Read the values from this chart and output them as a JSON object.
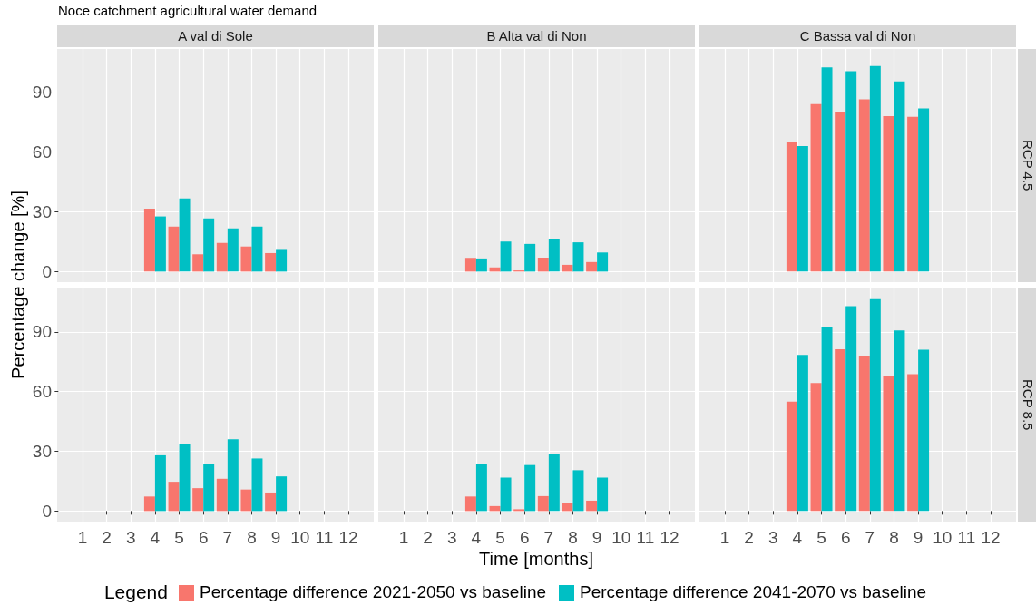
{
  "chart_data": [
    {
      "type": "bar",
      "title": "Noce catchment agricultural water demand",
      "subtitle": "A val di Sole",
      "ylabel": "Percentage change [%]",
      "legend_title": "Legend",
      "legend": "bottom",
      "grid": true,
      "tick_labels": "y",
      "x": [
        1,
        2,
        3,
        4,
        5,
        6,
        7,
        8,
        9,
        10,
        11,
        12
      ],
      "xlim": [
        -0.05,
        13.05
      ],
      "xticks": [
        1,
        2,
        3,
        4,
        5,
        6,
        7,
        8,
        9,
        10,
        11,
        12
      ],
      "ylim": [
        -5.3,
        111.8
      ],
      "yticks": [
        0,
        30,
        60,
        90
      ],
      "series": [
        {
          "name": "Percentage difference 2021-2050 vs baseline",
          "color": "#f8766d",
          "values": [
            0,
            0,
            0,
            31.6,
            22.6,
            8.7,
            14.4,
            12.6,
            9.3,
            0,
            0,
            0
          ]
        },
        {
          "name": "Percentage difference 2041-2070 vs baseline",
          "color": "#00bfc4",
          "values": [
            0,
            0,
            0,
            27.7,
            36.7,
            26.7,
            21.7,
            22.6,
            10.9,
            0,
            0,
            0
          ]
        }
      ]
    },
    {
      "type": "bar",
      "subtitle": "B Alta val di Non",
      "grid": true,
      "tick_labels": false,
      "x": [
        1,
        2,
        3,
        4,
        5,
        6,
        7,
        8,
        9,
        10,
        11,
        12
      ],
      "xlim": [
        -0.05,
        13.05
      ],
      "xticks": [
        1,
        2,
        3,
        4,
        5,
        6,
        7,
        8,
        9,
        10,
        11,
        12
      ],
      "ylim": [
        -5.3,
        111.8
      ],
      "yticks": [
        0,
        30,
        60,
        90
      ],
      "series": [
        {
          "color": "#f8766d",
          "values": [
            0,
            0,
            0,
            6.9,
            2.1,
            0.6,
            7.0,
            3.4,
            4.8,
            0,
            0,
            0
          ]
        },
        {
          "color": "#00bfc4",
          "values": [
            0,
            0,
            0,
            6.6,
            15.1,
            13.9,
            16.6,
            14.7,
            9.6,
            0,
            0,
            0
          ]
        }
      ]
    },
    {
      "type": "bar",
      "subtitle": "C Bassa val di Non",
      "y2label": "RCP 4.5",
      "grid": true,
      "tick_labels": false,
      "x": [
        1,
        2,
        3,
        4,
        5,
        6,
        7,
        8,
        9,
        10,
        11,
        12
      ],
      "xlim": [
        -0.05,
        13.05
      ],
      "xticks": [
        1,
        2,
        3,
        4,
        5,
        6,
        7,
        8,
        9,
        10,
        11,
        12
      ],
      "ylim": [
        -5.3,
        111.8
      ],
      "yticks": [
        0,
        30,
        60,
        90
      ],
      "series": [
        {
          "color": "#f8766d",
          "values": [
            0,
            0,
            0,
            65.1,
            84.1,
            79.9,
            86.5,
            78.1,
            77.7,
            0,
            0,
            0
          ]
        },
        {
          "color": "#00bfc4",
          "values": [
            0,
            0,
            0,
            63.1,
            102.6,
            100.6,
            103.3,
            95.5,
            81.9,
            0,
            0,
            0
          ]
        }
      ]
    },
    {
      "type": "bar",
      "grid": true,
      "x": [
        1,
        2,
        3,
        4,
        5,
        6,
        7,
        8,
        9,
        10,
        11,
        12
      ],
      "xlim": [
        -0.05,
        13.05
      ],
      "xticks": [
        1,
        2,
        3,
        4,
        5,
        6,
        7,
        8,
        9,
        10,
        11,
        12
      ],
      "ylim": [
        -5.3,
        111.8
      ],
      "yticks": [
        0,
        30,
        60,
        90
      ],
      "series": [
        {
          "color": "#f8766d",
          "values": [
            0,
            0,
            0,
            7.3,
            14.7,
            11.5,
            16.2,
            10.8,
            9.3,
            0,
            0,
            0
          ]
        },
        {
          "color": "#00bfc4",
          "values": [
            0,
            0,
            0,
            28.0,
            33.9,
            23.5,
            36.1,
            26.4,
            17.4,
            0,
            0,
            0
          ]
        }
      ]
    },
    {
      "type": "bar",
      "xlabel": "Time [months]",
      "grid": true,
      "tick_labels": "x",
      "x": [
        1,
        2,
        3,
        4,
        5,
        6,
        7,
        8,
        9,
        10,
        11,
        12
      ],
      "xlim": [
        -0.05,
        13.05
      ],
      "xticks": [
        1,
        2,
        3,
        4,
        5,
        6,
        7,
        8,
        9,
        10,
        11,
        12
      ],
      "ylim": [
        -5.3,
        111.8
      ],
      "yticks": [
        0,
        30,
        60,
        90
      ],
      "series": [
        {
          "color": "#f8766d",
          "values": [
            0,
            0,
            0,
            7.3,
            2.5,
            0.9,
            7.5,
            3.9,
            5.2,
            0,
            0,
            0
          ]
        },
        {
          "color": "#00bfc4",
          "values": [
            0,
            0,
            0,
            23.7,
            16.8,
            23.1,
            28.8,
            20.5,
            16.8,
            0,
            0,
            0
          ]
        }
      ]
    },
    {
      "type": "bar",
      "y2label": "RCP 8.5",
      "grid": true,
      "tick_labels": "x",
      "x": [
        1,
        2,
        3,
        4,
        5,
        6,
        7,
        8,
        9,
        10,
        11,
        12
      ],
      "xlim": [
        -0.05,
        13.05
      ],
      "xticks": [
        1,
        2,
        3,
        4,
        5,
        6,
        7,
        8,
        9,
        10,
        11,
        12
      ],
      "ylim": [
        -5.3,
        111.8
      ],
      "yticks": [
        0,
        30,
        60,
        90
      ],
      "series": [
        {
          "color": "#f8766d",
          "values": [
            0,
            0,
            0,
            55.0,
            64.3,
            81.3,
            78.1,
            67.6,
            68.7,
            0,
            0,
            0
          ]
        },
        {
          "color": "#00bfc4",
          "values": [
            0,
            0,
            0,
            78.4,
            92.2,
            102.9,
            106.5,
            90.7,
            81.1,
            0,
            0,
            0
          ]
        }
      ]
    }
  ]
}
